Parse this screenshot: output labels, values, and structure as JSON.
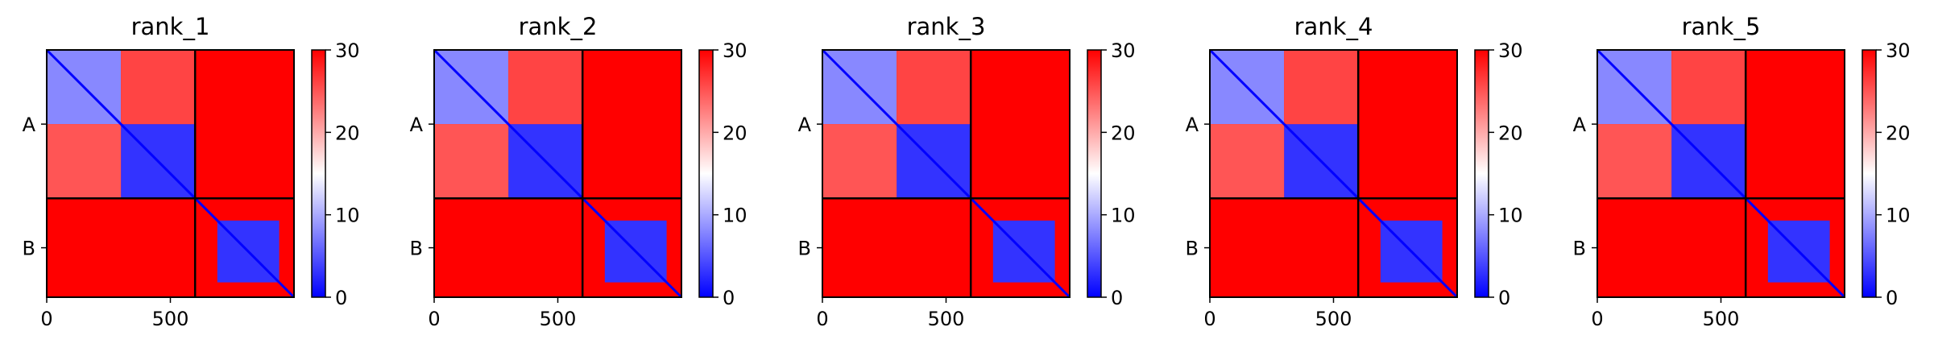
{
  "chart_data": [
    {
      "type": "heatmap",
      "title": "rank_1",
      "xlabel": "",
      "ylabel": "",
      "xlim": [
        0,
        1000
      ],
      "x_ticks": [
        0,
        500
      ],
      "x_tick_labels": [
        "0",
        "500"
      ],
      "chain_labels": [
        "A",
        "B"
      ],
      "chain_boundary": 600,
      "colorbar": {
        "range": [
          0,
          30
        ],
        "ticks": [
          0,
          10,
          20,
          30
        ],
        "tick_labels": [
          "0",
          "10",
          "20",
          "30"
        ],
        "colors": [
          "#0000ff",
          "#ffffff",
          "#ff0000"
        ]
      },
      "blocks": [
        {
          "x": [
            0,
            300
          ],
          "y": [
            0,
            300
          ],
          "value": 8
        },
        {
          "x": [
            300,
            600
          ],
          "y": [
            300,
            600
          ],
          "value": 3
        },
        {
          "x": [
            300,
            600
          ],
          "y": [
            0,
            300
          ],
          "value": 26
        },
        {
          "x": [
            0,
            300
          ],
          "y": [
            300,
            600
          ],
          "value": 25
        },
        {
          "x": [
            600,
            1000
          ],
          "y": [
            0,
            600
          ],
          "value": 30
        },
        {
          "x": [
            0,
            600
          ],
          "y": [
            600,
            1000
          ],
          "value": 30
        },
        {
          "x": [
            700,
            950
          ],
          "y": [
            700,
            950
          ],
          "value": 30
        },
        {
          "x": [
            690,
            940
          ],
          "y": [
            690,
            940
          ],
          "value": 3
        }
      ]
    },
    {
      "type": "heatmap",
      "title": "rank_2",
      "xlabel": "",
      "ylabel": "",
      "xlim": [
        0,
        1000
      ],
      "x_ticks": [
        0,
        500
      ],
      "x_tick_labels": [
        "0",
        "500"
      ],
      "chain_labels": [
        "A",
        "B"
      ],
      "chain_boundary": 600,
      "colorbar": {
        "range": [
          0,
          30
        ],
        "ticks": [
          0,
          10,
          20,
          30
        ],
        "tick_labels": [
          "0",
          "10",
          "20",
          "30"
        ],
        "colors": [
          "#0000ff",
          "#ffffff",
          "#ff0000"
        ]
      },
      "blocks": [
        {
          "x": [
            0,
            300
          ],
          "y": [
            0,
            300
          ],
          "value": 8
        },
        {
          "x": [
            300,
            600
          ],
          "y": [
            300,
            600
          ],
          "value": 3
        },
        {
          "x": [
            300,
            600
          ],
          "y": [
            0,
            300
          ],
          "value": 26
        },
        {
          "x": [
            0,
            300
          ],
          "y": [
            300,
            600
          ],
          "value": 25
        },
        {
          "x": [
            600,
            1000
          ],
          "y": [
            0,
            600
          ],
          "value": 30
        },
        {
          "x": [
            0,
            600
          ],
          "y": [
            600,
            1000
          ],
          "value": 30
        },
        {
          "x": [
            690,
            940
          ],
          "y": [
            690,
            940
          ],
          "value": 3
        }
      ]
    },
    {
      "type": "heatmap",
      "title": "rank_3",
      "xlabel": "",
      "ylabel": "",
      "xlim": [
        0,
        1000
      ],
      "x_ticks": [
        0,
        500
      ],
      "x_tick_labels": [
        "0",
        "500"
      ],
      "chain_labels": [
        "A",
        "B"
      ],
      "chain_boundary": 600,
      "colorbar": {
        "range": [
          0,
          30
        ],
        "ticks": [
          0,
          10,
          20,
          30
        ],
        "tick_labels": [
          "0",
          "10",
          "20",
          "30"
        ],
        "colors": [
          "#0000ff",
          "#ffffff",
          "#ff0000"
        ]
      },
      "blocks": [
        {
          "x": [
            0,
            300
          ],
          "y": [
            0,
            300
          ],
          "value": 8
        },
        {
          "x": [
            300,
            600
          ],
          "y": [
            300,
            600
          ],
          "value": 3
        },
        {
          "x": [
            300,
            600
          ],
          "y": [
            0,
            300
          ],
          "value": 26
        },
        {
          "x": [
            0,
            300
          ],
          "y": [
            300,
            600
          ],
          "value": 25
        },
        {
          "x": [
            600,
            1000
          ],
          "y": [
            0,
            600
          ],
          "value": 30
        },
        {
          "x": [
            0,
            600
          ],
          "y": [
            600,
            1000
          ],
          "value": 30
        },
        {
          "x": [
            690,
            940
          ],
          "y": [
            690,
            940
          ],
          "value": 3
        }
      ]
    },
    {
      "type": "heatmap",
      "title": "rank_4",
      "xlabel": "",
      "ylabel": "",
      "xlim": [
        0,
        1000
      ],
      "x_ticks": [
        0,
        500
      ],
      "x_tick_labels": [
        "0",
        "500"
      ],
      "chain_labels": [
        "A",
        "B"
      ],
      "chain_boundary": 600,
      "colorbar": {
        "range": [
          0,
          30
        ],
        "ticks": [
          0,
          10,
          20,
          30
        ],
        "tick_labels": [
          "0",
          "10",
          "20",
          "30"
        ],
        "colors": [
          "#0000ff",
          "#ffffff",
          "#ff0000"
        ]
      },
      "blocks": [
        {
          "x": [
            0,
            300
          ],
          "y": [
            0,
            300
          ],
          "value": 8
        },
        {
          "x": [
            300,
            600
          ],
          "y": [
            300,
            600
          ],
          "value": 3
        },
        {
          "x": [
            300,
            600
          ],
          "y": [
            0,
            300
          ],
          "value": 26
        },
        {
          "x": [
            0,
            300
          ],
          "y": [
            300,
            600
          ],
          "value": 25
        },
        {
          "x": [
            600,
            1000
          ],
          "y": [
            0,
            600
          ],
          "value": 30
        },
        {
          "x": [
            0,
            600
          ],
          "y": [
            600,
            1000
          ],
          "value": 30
        },
        {
          "x": [
            690,
            940
          ],
          "y": [
            690,
            940
          ],
          "value": 3
        }
      ]
    },
    {
      "type": "heatmap",
      "title": "rank_5",
      "xlabel": "",
      "ylabel": "",
      "xlim": [
        0,
        1000
      ],
      "x_ticks": [
        0,
        500
      ],
      "x_tick_labels": [
        "0",
        "500"
      ],
      "chain_labels": [
        "A",
        "B"
      ],
      "chain_boundary": 600,
      "colorbar": {
        "range": [
          0,
          30
        ],
        "ticks": [
          0,
          10,
          20,
          30
        ],
        "tick_labels": [
          "0",
          "10",
          "20",
          "30"
        ],
        "colors": [
          "#0000ff",
          "#ffffff",
          "#ff0000"
        ]
      },
      "blocks": [
        {
          "x": [
            0,
            300
          ],
          "y": [
            0,
            300
          ],
          "value": 8
        },
        {
          "x": [
            300,
            600
          ],
          "y": [
            300,
            600
          ],
          "value": 3
        },
        {
          "x": [
            300,
            600
          ],
          "y": [
            0,
            300
          ],
          "value": 26
        },
        {
          "x": [
            0,
            300
          ],
          "y": [
            300,
            600
          ],
          "value": 25
        },
        {
          "x": [
            600,
            1000
          ],
          "y": [
            0,
            600
          ],
          "value": 30
        },
        {
          "x": [
            0,
            600
          ],
          "y": [
            600,
            1000
          ],
          "value": 30
        },
        {
          "x": [
            690,
            940
          ],
          "y": [
            690,
            940
          ],
          "value": 3
        }
      ]
    }
  ]
}
